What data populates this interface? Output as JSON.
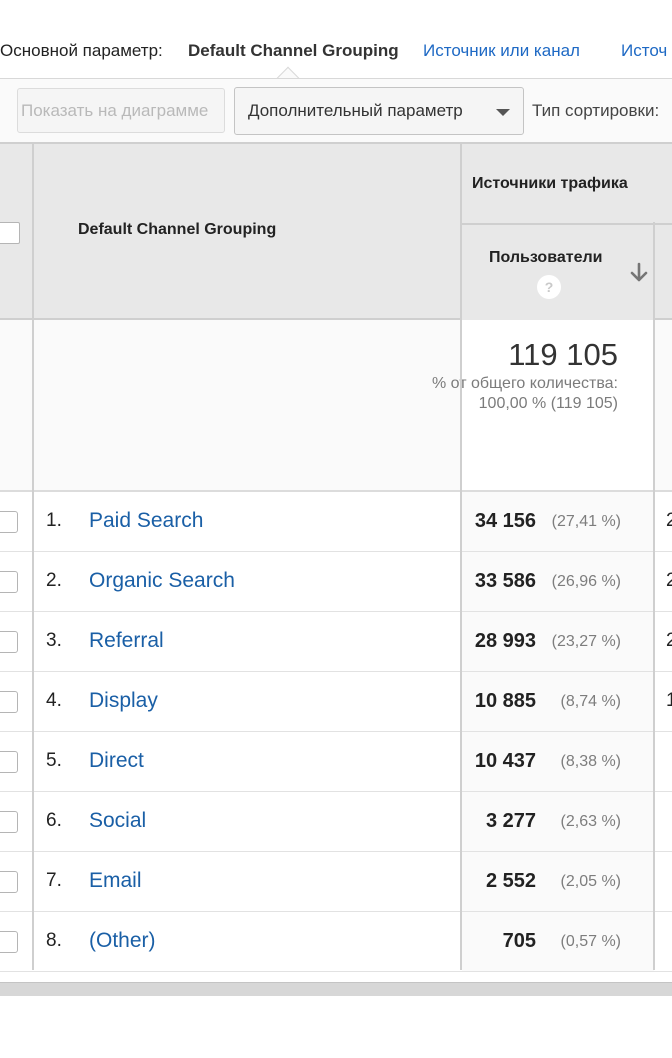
{
  "dimension_bar": {
    "label": "Основной параметр:",
    "active": "Default Channel Grouping",
    "links": [
      "Источник или канал",
      "Источ"
    ]
  },
  "toolbar": {
    "plot_button": "Показать на диаграмме",
    "secondary_dimension": "Дополнительный параметр",
    "sort_type_label": "Тип сортировки:"
  },
  "table": {
    "dimension_header": "Default Channel Grouping",
    "group_header": "Источники трафика",
    "metric_header": "Пользователи",
    "help_icon": "?",
    "total": {
      "value": "119 105",
      "pct_text": "% от общего количества: 100,00 % (119 105)"
    },
    "rows": [
      {
        "index": "1.",
        "name": "Paid Search",
        "value": "34 156",
        "pct": "(27,41 %)",
        "next": "2"
      },
      {
        "index": "2.",
        "name": "Organic Search",
        "value": "33 586",
        "pct": "(26,96 %)",
        "next": "2"
      },
      {
        "index": "3.",
        "name": "Referral",
        "value": "28 993",
        "pct": "(23,27 %)",
        "next": "2"
      },
      {
        "index": "4.",
        "name": "Display",
        "value": "10 885",
        "pct": "(8,74 %)",
        "next": "1"
      },
      {
        "index": "5.",
        "name": "Direct",
        "value": "10 437",
        "pct": "(8,38 %)",
        "next": ""
      },
      {
        "index": "6.",
        "name": "Social",
        "value": "3 277",
        "pct": "(2,63 %)",
        "next": ""
      },
      {
        "index": "7.",
        "name": "Email",
        "value": "2 552",
        "pct": "(2,05 %)",
        "next": ""
      },
      {
        "index": "8.",
        "name": "(Other)",
        "value": "705",
        "pct": "(0,57 %)",
        "next": ""
      }
    ]
  },
  "colors": {
    "link": "#1a5fa6",
    "header_bg": "#e8e8e8"
  }
}
